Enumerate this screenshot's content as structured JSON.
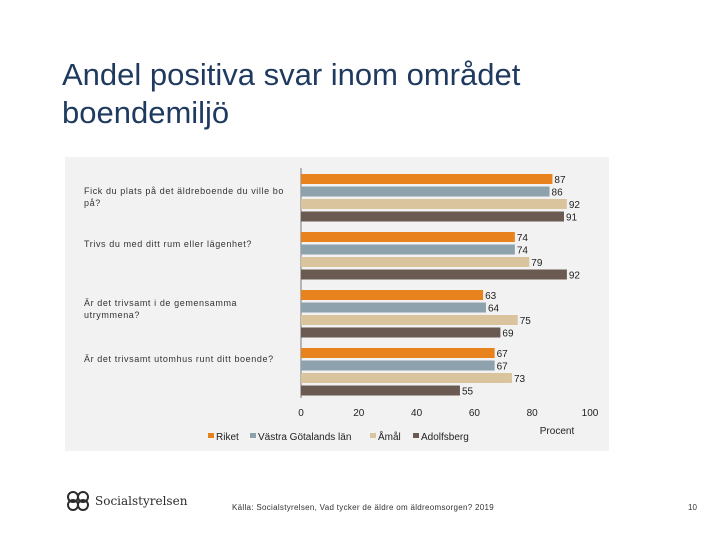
{
  "title": "Andel positiva svar inom området boendemiljö",
  "chart_data": {
    "type": "bar",
    "orientation": "horizontal",
    "categories": [
      "Fick du plats på det äldreboende du ville bo på?",
      "Trivs du med ditt rum eller lägenhet?",
      "Är det trivsamt i de gemensamma utrymmena?",
      "Är det trivsamt utomhus runt ditt boende?"
    ],
    "series": [
      {
        "name": "Riket",
        "color": "#e8821c",
        "values": [
          87,
          74,
          63,
          67
        ]
      },
      {
        "name": "Västra Götalands län",
        "color": "#8ea2ae",
        "values": [
          86,
          74,
          64,
          67
        ]
      },
      {
        "name": "Åmål",
        "color": "#d9c49e",
        "values": [
          92,
          79,
          75,
          73
        ]
      },
      {
        "name": "Adolfsberg",
        "color": "#6b5a52",
        "values": [
          91,
          92,
          69,
          55
        ]
      }
    ],
    "xlim": [
      0,
      100
    ],
    "xticks": [
      "0",
      "20",
      "40",
      "60",
      "80",
      "100"
    ],
    "xlabel": "Procent",
    "legend_position": "bottom"
  },
  "footer": {
    "logo_text": "Socialstyrelsen",
    "source": "Källa: Socialstyrelsen, Vad tycker de äldre om äldreomsorgen? 2019",
    "page_number": "10"
  }
}
